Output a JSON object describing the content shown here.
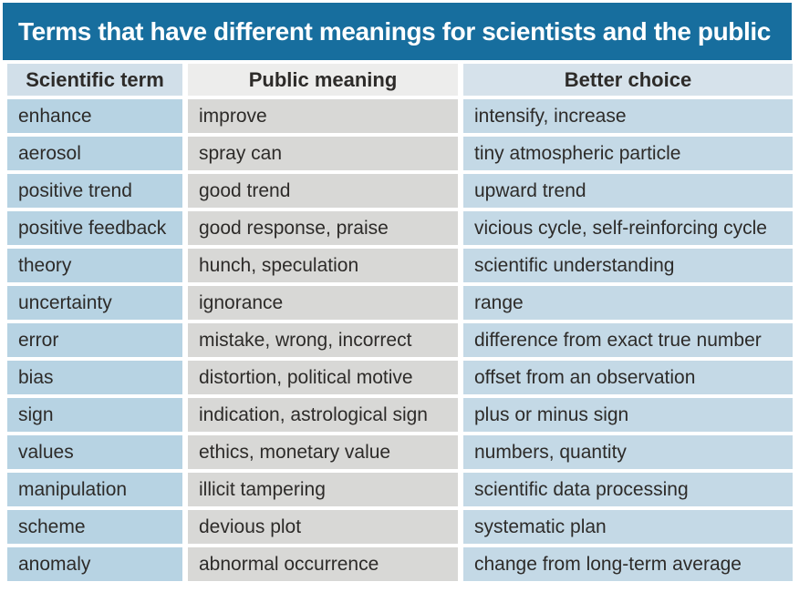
{
  "title": "Terms that have different meanings for scientists and the public",
  "table": {
    "headers": [
      "Scientific term",
      "Public meaning",
      "Better choice"
    ],
    "rows": [
      [
        "enhance",
        "improve",
        "intensify, increase"
      ],
      [
        "aerosol",
        "spray can",
        "tiny atmospheric particle"
      ],
      [
        "positive trend",
        "good trend",
        "upward trend"
      ],
      [
        "positive feedback",
        "good response, praise",
        "vicious cycle, self-reinforcing cycle"
      ],
      [
        "theory",
        "hunch, speculation",
        "scientific understanding"
      ],
      [
        "uncertainty",
        "ignorance",
        "range"
      ],
      [
        "error",
        "mistake, wrong, incorrect",
        "difference from exact true number"
      ],
      [
        "bias",
        "distortion, political motive",
        "offset from an observation"
      ],
      [
        "sign",
        "indication, astrological sign",
        "plus or minus sign"
      ],
      [
        "values",
        "ethics, monetary value",
        "numbers, quantity"
      ],
      [
        "manipulation",
        "illicit tampering",
        "scientific data processing"
      ],
      [
        "scheme",
        "devious plot",
        "systematic plan"
      ],
      [
        "anomaly",
        "abnormal occurrence",
        "change from long-term average"
      ]
    ]
  },
  "colors": {
    "title_bar": "#176e9e",
    "title_text": "#ffffff",
    "header_scientific_term": "#d1dfe9",
    "header_public_meaning": "#ededec",
    "header_better_choice": "#d6e2eb",
    "column_scientific_term": "#b7d3e3",
    "column_public_meaning": "#d8d8d6",
    "column_better_choice": "#c4d9e6",
    "body_text": "#2d2b29",
    "background": "#ffffff"
  }
}
